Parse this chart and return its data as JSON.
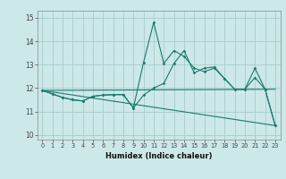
{
  "title": "",
  "xlabel": "Humidex (Indice chaleur)",
  "bg_color": "#cce8e8",
  "grid_color": "#aacccc",
  "line_color": "#1a7a6e",
  "xlim": [
    -0.5,
    23.5
  ],
  "ylim": [
    9.8,
    15.3
  ],
  "yticks": [
    10,
    11,
    12,
    13,
    14,
    15
  ],
  "xtick_labels": [
    "0",
    "1",
    "2",
    "3",
    "4",
    "5",
    "6",
    "7",
    "8",
    "9",
    "10",
    "11",
    "12",
    "13",
    "14",
    "15",
    "16",
    "17",
    "18",
    "19",
    "20",
    "21",
    "22",
    "23"
  ],
  "series1_x": [
    0,
    1,
    2,
    3,
    4,
    5,
    6,
    7,
    8,
    9,
    10,
    11,
    12,
    13,
    14,
    15,
    16,
    17,
    18,
    19,
    20,
    21,
    22,
    23
  ],
  "series1_y": [
    11.9,
    11.75,
    11.6,
    11.5,
    11.45,
    11.65,
    11.7,
    11.72,
    11.72,
    11.15,
    11.7,
    12.0,
    12.2,
    13.05,
    13.6,
    12.65,
    12.85,
    12.9,
    12.4,
    11.95,
    11.95,
    12.45,
    11.95,
    10.4
  ],
  "series2_x": [
    0,
    1,
    2,
    3,
    4,
    5,
    6,
    7,
    8,
    9,
    10,
    11,
    12,
    13,
    14,
    15,
    16,
    17,
    18,
    19,
    20,
    21,
    22,
    23
  ],
  "series2_y": [
    11.9,
    11.75,
    11.6,
    11.5,
    11.45,
    11.65,
    11.7,
    11.72,
    11.72,
    11.15,
    13.1,
    14.8,
    13.05,
    13.6,
    13.35,
    12.85,
    12.7,
    12.85,
    12.4,
    11.95,
    11.95,
    12.85,
    11.95,
    10.4
  ],
  "series3_x": [
    0,
    23
  ],
  "series3_y": [
    11.9,
    10.4
  ],
  "series4_x": [
    0,
    23
  ],
  "series4_y": [
    11.9,
    11.95
  ]
}
